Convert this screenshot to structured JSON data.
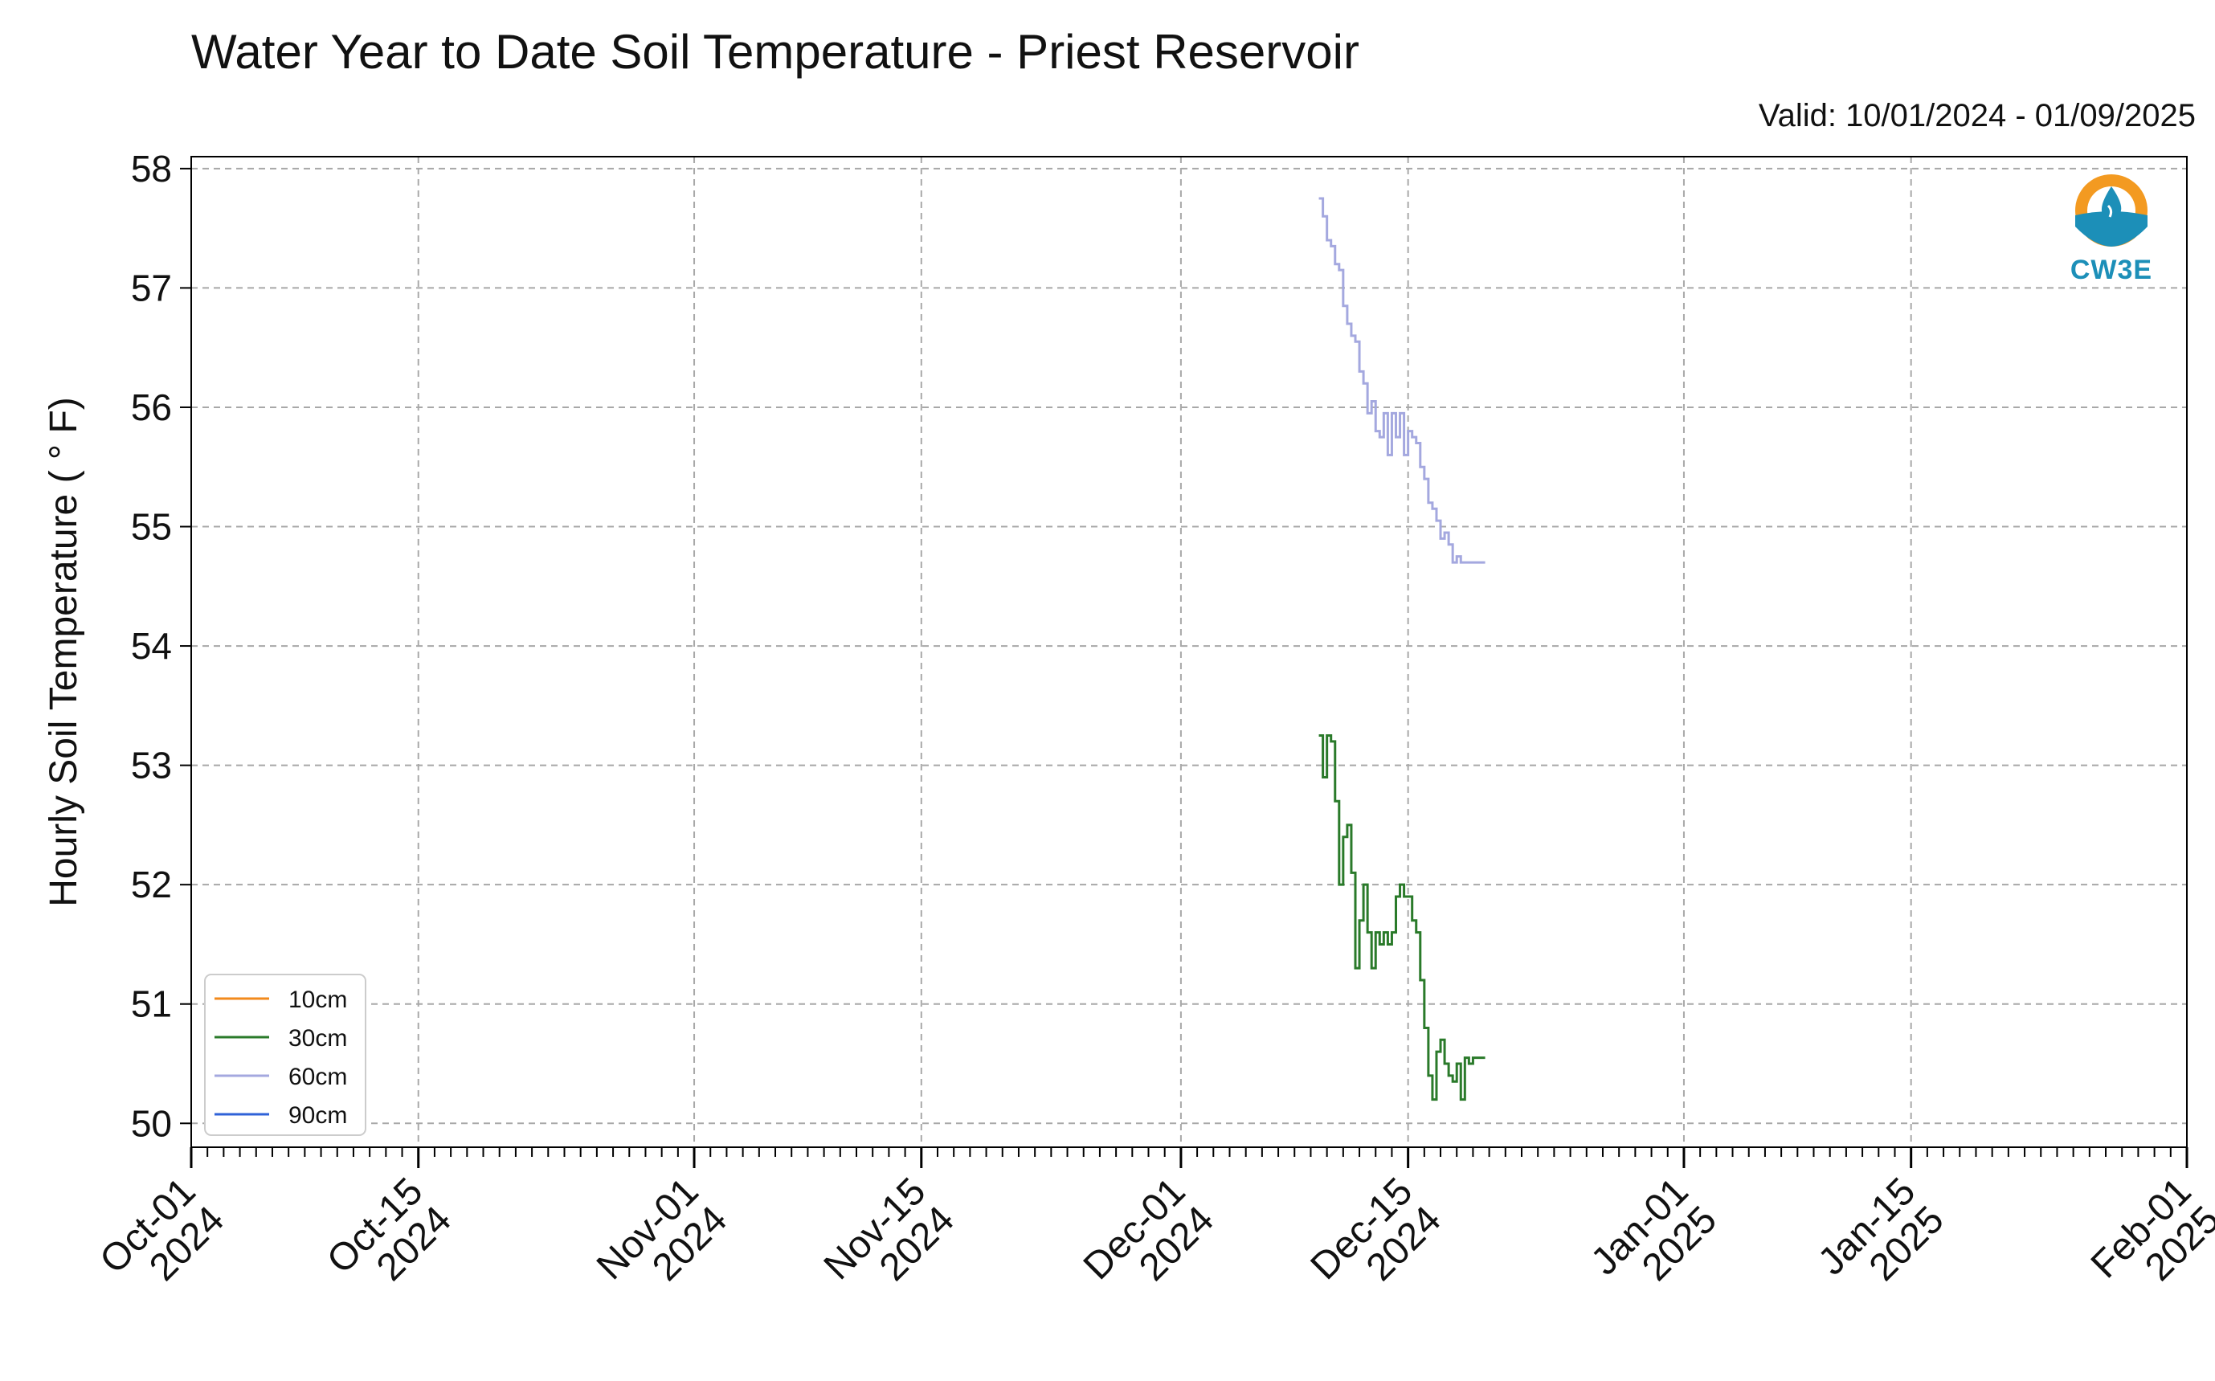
{
  "chart_data": {
    "type": "line",
    "title": "Water Year to Date Soil Temperature - Priest Reservoir",
    "subtitle": "Valid: 10/01/2024 - 01/09/2025",
    "xlabel": "",
    "ylabel": "Hourly Soil Temperature ( ° F)",
    "ylim": [
      49.8,
      58.1
    ],
    "xlim": [
      "2024-10-01",
      "2025-02-01"
    ],
    "yticks": [
      "50",
      "51",
      "52",
      "53",
      "54",
      "55",
      "56",
      "57",
      "58"
    ],
    "xticks": [
      {
        "date": "2024-10-01",
        "line1": "Oct-01",
        "line2": "2024"
      },
      {
        "date": "2024-10-15",
        "line1": "Oct-15",
        "line2": "2024"
      },
      {
        "date": "2024-11-01",
        "line1": "Nov-01",
        "line2": "2024"
      },
      {
        "date": "2024-11-15",
        "line1": "Nov-15",
        "line2": "2024"
      },
      {
        "date": "2024-12-01",
        "line1": "Dec-01",
        "line2": "2024"
      },
      {
        "date": "2024-12-15",
        "line1": "Dec-15",
        "line2": "2024"
      },
      {
        "date": "2025-01-01",
        "line1": "Jan-01",
        "line2": "2025"
      },
      {
        "date": "2025-01-15",
        "line1": "Jan-15",
        "line2": "2025"
      },
      {
        "date": "2025-02-01",
        "line1": "Feb-01",
        "line2": "2025"
      }
    ],
    "grid": true,
    "legend_position": "bottom-left",
    "series": [
      {
        "name": "10cm",
        "color": "#f28a1c",
        "x": [],
        "y": []
      },
      {
        "name": "30cm",
        "color": "#2a7a2a",
        "x": [
          "2024-12-09 12:00",
          "2024-12-09 18:00",
          "2024-12-10 00:00",
          "2024-12-10 06:00",
          "2024-12-10 12:00",
          "2024-12-10 18:00",
          "2024-12-11 00:00",
          "2024-12-11 06:00",
          "2024-12-11 12:00",
          "2024-12-11 18:00",
          "2024-12-12 00:00",
          "2024-12-12 06:00",
          "2024-12-12 12:00",
          "2024-12-12 18:00",
          "2024-12-13 00:00",
          "2024-12-13 06:00",
          "2024-12-13 12:00",
          "2024-12-13 18:00",
          "2024-12-14 00:00",
          "2024-12-14 06:00",
          "2024-12-14 12:00",
          "2024-12-14 18:00",
          "2024-12-15 00:00",
          "2024-12-15 06:00",
          "2024-12-15 12:00",
          "2024-12-15 18:00",
          "2024-12-16 00:00",
          "2024-12-16 06:00",
          "2024-12-16 12:00",
          "2024-12-16 18:00",
          "2024-12-17 00:00",
          "2024-12-17 06:00",
          "2024-12-17 12:00",
          "2024-12-17 18:00",
          "2024-12-18 00:00",
          "2024-12-18 06:00",
          "2024-12-18 12:00",
          "2024-12-18 18:00",
          "2024-12-19 00:00",
          "2024-12-19 06:00",
          "2024-12-19 12:00",
          "2024-12-19 18:00"
        ],
        "y": [
          53.25,
          52.9,
          53.25,
          53.2,
          52.7,
          52.0,
          52.4,
          52.5,
          52.1,
          51.3,
          51.7,
          52.0,
          51.6,
          51.3,
          51.6,
          51.5,
          51.6,
          51.5,
          51.6,
          51.9,
          52.0,
          51.9,
          51.9,
          51.7,
          51.6,
          51.2,
          50.8,
          50.4,
          50.2,
          50.6,
          50.7,
          50.5,
          50.4,
          50.35,
          50.5,
          50.2,
          50.55,
          50.5,
          50.55,
          50.55,
          50.55,
          50.55
        ]
      },
      {
        "name": "60cm",
        "color": "#a4a8df",
        "x": [
          "2024-12-09 12:00",
          "2024-12-09 18:00",
          "2024-12-10 00:00",
          "2024-12-10 06:00",
          "2024-12-10 12:00",
          "2024-12-10 18:00",
          "2024-12-11 00:00",
          "2024-12-11 06:00",
          "2024-12-11 12:00",
          "2024-12-11 18:00",
          "2024-12-12 00:00",
          "2024-12-12 06:00",
          "2024-12-12 12:00",
          "2024-12-12 18:00",
          "2024-12-13 00:00",
          "2024-12-13 06:00",
          "2024-12-13 12:00",
          "2024-12-13 18:00",
          "2024-12-14 00:00",
          "2024-12-14 06:00",
          "2024-12-14 12:00",
          "2024-12-14 18:00",
          "2024-12-15 00:00",
          "2024-12-15 06:00",
          "2024-12-15 12:00",
          "2024-12-15 18:00",
          "2024-12-16 00:00",
          "2024-12-16 06:00",
          "2024-12-16 12:00",
          "2024-12-16 18:00",
          "2024-12-17 00:00",
          "2024-12-17 06:00",
          "2024-12-17 12:00",
          "2024-12-17 18:00",
          "2024-12-18 00:00",
          "2024-12-18 06:00",
          "2024-12-18 12:00",
          "2024-12-18 18:00",
          "2024-12-19 00:00",
          "2024-12-19 06:00",
          "2024-12-19 12:00",
          "2024-12-19 18:00"
        ],
        "y": [
          57.75,
          57.6,
          57.4,
          57.35,
          57.2,
          57.15,
          56.85,
          56.7,
          56.6,
          56.55,
          56.3,
          56.2,
          55.95,
          56.05,
          55.8,
          55.75,
          55.95,
          55.6,
          55.95,
          55.75,
          55.95,
          55.6,
          55.8,
          55.75,
          55.7,
          55.5,
          55.4,
          55.2,
          55.15,
          55.05,
          54.9,
          54.95,
          54.85,
          54.7,
          54.75,
          54.7,
          54.7,
          54.7,
          54.7,
          54.7,
          54.7,
          54.7
        ]
      },
      {
        "name": "90cm",
        "color": "#2f62d8",
        "x": [],
        "y": []
      }
    ]
  },
  "logo": {
    "text": "CW3E",
    "orange": "#f39a21",
    "blue": "#1c8fb8"
  }
}
